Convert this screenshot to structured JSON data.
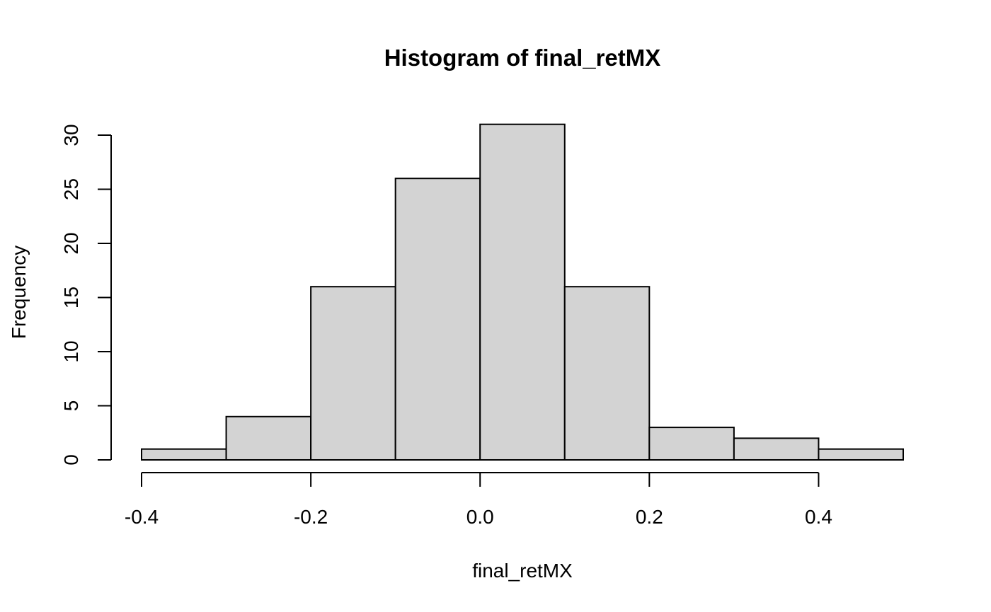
{
  "chart_data": {
    "type": "bar",
    "title": "Histogram of final_retMX",
    "xlabel": "final_retMX",
    "ylabel": "Frequency",
    "bin_edges": [
      -0.4,
      -0.3,
      -0.2,
      -0.1,
      0.0,
      0.1,
      0.2,
      0.3,
      0.4,
      0.5
    ],
    "values": [
      1,
      4,
      16,
      26,
      31,
      16,
      3,
      2,
      1
    ],
    "xlim": [
      -0.4,
      0.5
    ],
    "ylim": [
      0,
      31
    ],
    "x_ticks": [
      -0.4,
      -0.2,
      0.0,
      0.2,
      0.4
    ],
    "x_tick_labels": [
      "-0.4",
      "-0.2",
      "0.0",
      "0.2",
      "0.4"
    ],
    "y_ticks": [
      0,
      5,
      10,
      15,
      20,
      25,
      30
    ],
    "y_tick_labels": [
      "0",
      "5",
      "10",
      "15",
      "20",
      "25",
      "30"
    ],
    "bar_color": "#d3d3d3",
    "grid": false,
    "legend": "none"
  }
}
